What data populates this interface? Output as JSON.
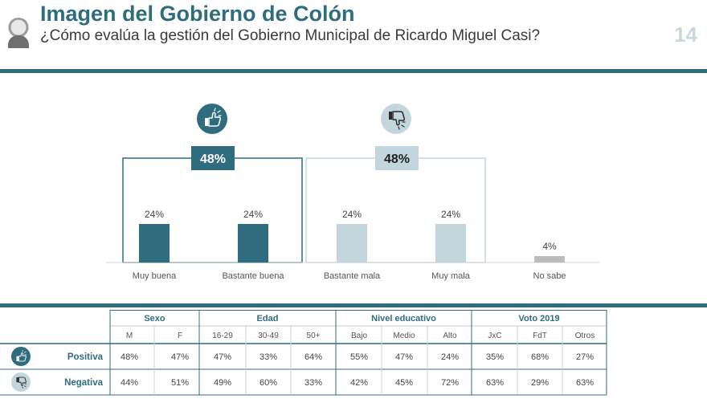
{
  "header": {
    "title": "Imagen del Gobierno de Colón",
    "subtitle": "¿Cómo evalúa la gestión del Gobierno Municipal de Ricardo Miguel Casi?",
    "page_number": "14"
  },
  "colors": {
    "positive": "#2f6c7e",
    "negative": "#c4d6dd",
    "neutral": "#bdbdbd",
    "accent": "#2f6c7e"
  },
  "groups": {
    "positive_total": "48%",
    "negative_total": "48%",
    "positive_icon": "thumbs-up-icon",
    "negative_icon": "thumbs-down-icon"
  },
  "chart_data": {
    "type": "bar",
    "categories": [
      "Muy buena",
      "Bastante buena",
      "Bastante mala",
      "Muy mala",
      "No sabe"
    ],
    "values": [
      24,
      24,
      24,
      24,
      4
    ],
    "labels": [
      "24%",
      "24%",
      "24%",
      "24%",
      "4%"
    ],
    "ylim": [
      0,
      24
    ]
  },
  "table": {
    "groups": [
      {
        "label": "Sexo",
        "columns": [
          "M",
          "F"
        ]
      },
      {
        "label": "Edad",
        "columns": [
          "16-29",
          "30-49",
          "50+"
        ]
      },
      {
        "label": "Nivel educativo",
        "columns": [
          "Bajo",
          "Medio",
          "Alto"
        ]
      },
      {
        "label": "Voto 2019",
        "columns": [
          "JxC",
          "FdT",
          "Otros"
        ]
      }
    ],
    "rows": [
      {
        "label": "Positiva",
        "icon": "thumbs-up-icon",
        "values": [
          "48%",
          "47%",
          "47%",
          "33%",
          "64%",
          "55%",
          "47%",
          "24%",
          "35%",
          "68%",
          "27%"
        ]
      },
      {
        "label": "Negativa",
        "icon": "thumbs-down-icon",
        "values": [
          "44%",
          "51%",
          "49%",
          "60%",
          "33%",
          "42%",
          "45%",
          "72%",
          "63%",
          "29%",
          "63%"
        ]
      }
    ]
  }
}
